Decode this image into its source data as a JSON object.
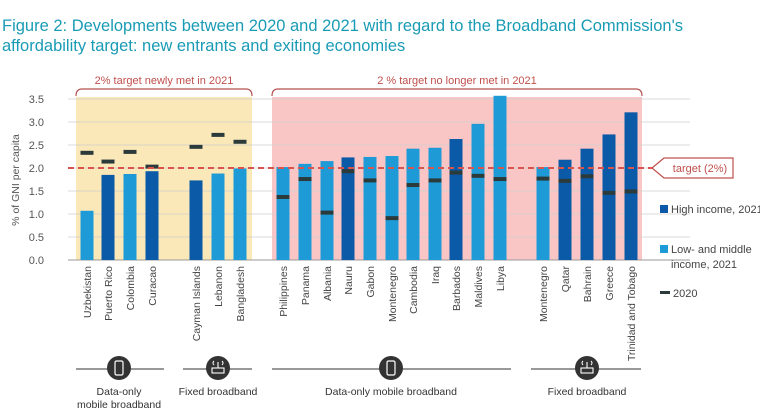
{
  "chart_data": {
    "type": "bar",
    "title": "Figure 2: Developments between 2020 and 2021 with regard to the Broadband Commission's affordability target: new entrants and exiting economies",
    "ylabel": "% of GNI per capita",
    "ylim": [
      0,
      3.5
    ],
    "yticks": [
      "0.0",
      "0.5",
      "1.0",
      "1.5",
      "2.0",
      "2.5",
      "3.0",
      "3.5"
    ],
    "grid": true,
    "legend_placement": "right",
    "target": {
      "value": 2.0,
      "label": "target (2%)",
      "color": "#d9534f"
    },
    "legend": [
      {
        "key": "high",
        "label": "High income, 2021",
        "color": "#0a5aa8"
      },
      {
        "key": "low",
        "label": "Low- and middle income, 2021",
        "color": "#1e9ad6"
      },
      {
        "key": "2020",
        "label": "2020",
        "color": "#2b3a3a"
      }
    ],
    "regions": [
      {
        "label": "2% target newly met in 2021",
        "from": "Uzbekistan",
        "to": "Bangladesh",
        "color": "#fbe8b8"
      },
      {
        "label": "2 % target no longer met in 2021",
        "from": "Philippines",
        "to": "Trinidad and Tobago",
        "color": "#f9c5c5"
      }
    ],
    "groups": [
      {
        "label": "Data-only mobile broadband",
        "icon": "mobile-phone-icon",
        "members": [
          "Uzbekistan",
          "Puerto Rico",
          "Colombia",
          "Curacao"
        ]
      },
      {
        "label": "Fixed broadband",
        "icon": "router-icon",
        "members": [
          "Cayman Islands",
          "Lebanon",
          "Bangladesh"
        ]
      },
      {
        "label": "Data-only mobile broadband",
        "icon": "mobile-phone-icon",
        "members": [
          "Philippines",
          "Panama",
          "Albania",
          "Nauru",
          "Gabon",
          "Montenegro",
          "Cambodia",
          "Iraq",
          "Barbados",
          "Maldives",
          "Libya"
        ]
      },
      {
        "label": "Fixed broadband",
        "icon": "router-icon",
        "members": [
          "Montenegro",
          "Qatar",
          "Bahrain",
          "Greece",
          "Trinidad and Tobago"
        ]
      }
    ],
    "group_labels_display": [
      "Data-only\nmobile broadband",
      "Fixed broadband",
      "Data-only mobile broadband",
      "Fixed broadband"
    ],
    "categories": [
      "Uzbekistan",
      "Puerto Rico",
      "Colombia",
      "Curacao",
      "Cayman Islands",
      "Lebanon",
      "Bangladesh",
      "Philippines",
      "Panama",
      "Albania",
      "Nauru",
      "Gabon",
      "Montenegro",
      "Cambodia",
      "Iraq",
      "Barbados",
      "Maldives",
      "Libya",
      "Montenegro",
      "Qatar",
      "Bahrain",
      "Greece",
      "Trinidad and Tobago"
    ],
    "income": [
      "low",
      "high",
      "low",
      "high",
      "high",
      "low",
      "low",
      "low",
      "low",
      "low",
      "high",
      "low",
      "low",
      "low",
      "low",
      "high",
      "low",
      "low",
      "low",
      "high",
      "high",
      "high",
      "high"
    ],
    "series": [
      {
        "name": "2021",
        "values": [
          1.07,
          1.85,
          1.87,
          1.93,
          1.73,
          1.88,
          1.99,
          2.02,
          2.09,
          2.15,
          2.23,
          2.24,
          2.26,
          2.42,
          2.44,
          2.63,
          2.96,
          3.57,
          2.02,
          2.18,
          2.42,
          2.73,
          3.21
        ]
      },
      {
        "name": "2020",
        "values": [
          2.33,
          2.14,
          2.35,
          2.03,
          2.46,
          2.72,
          2.57,
          1.37,
          1.76,
          1.03,
          1.93,
          1.73,
          0.91,
          1.63,
          1.73,
          1.9,
          1.83,
          1.76,
          1.77,
          1.72,
          1.82,
          1.46,
          1.49
        ]
      }
    ]
  }
}
